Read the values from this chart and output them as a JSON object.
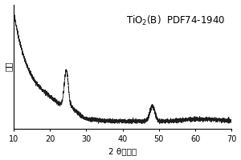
{
  "title": "TiO$_2$(B)  PDF74-1940",
  "xlabel": "2 θ（度）",
  "ylabel": "强度",
  "xlim": [
    10,
    70
  ],
  "ylim": [
    0,
    1.05
  ],
  "xticks": [
    10,
    20,
    30,
    40,
    50,
    60,
    70
  ],
  "background_color": "#ffffff",
  "line_color": "#111111",
  "noise_amplitude": 0.008,
  "title_fontsize": 8.5,
  "axis_fontsize": 7.5,
  "tick_fontsize": 7
}
